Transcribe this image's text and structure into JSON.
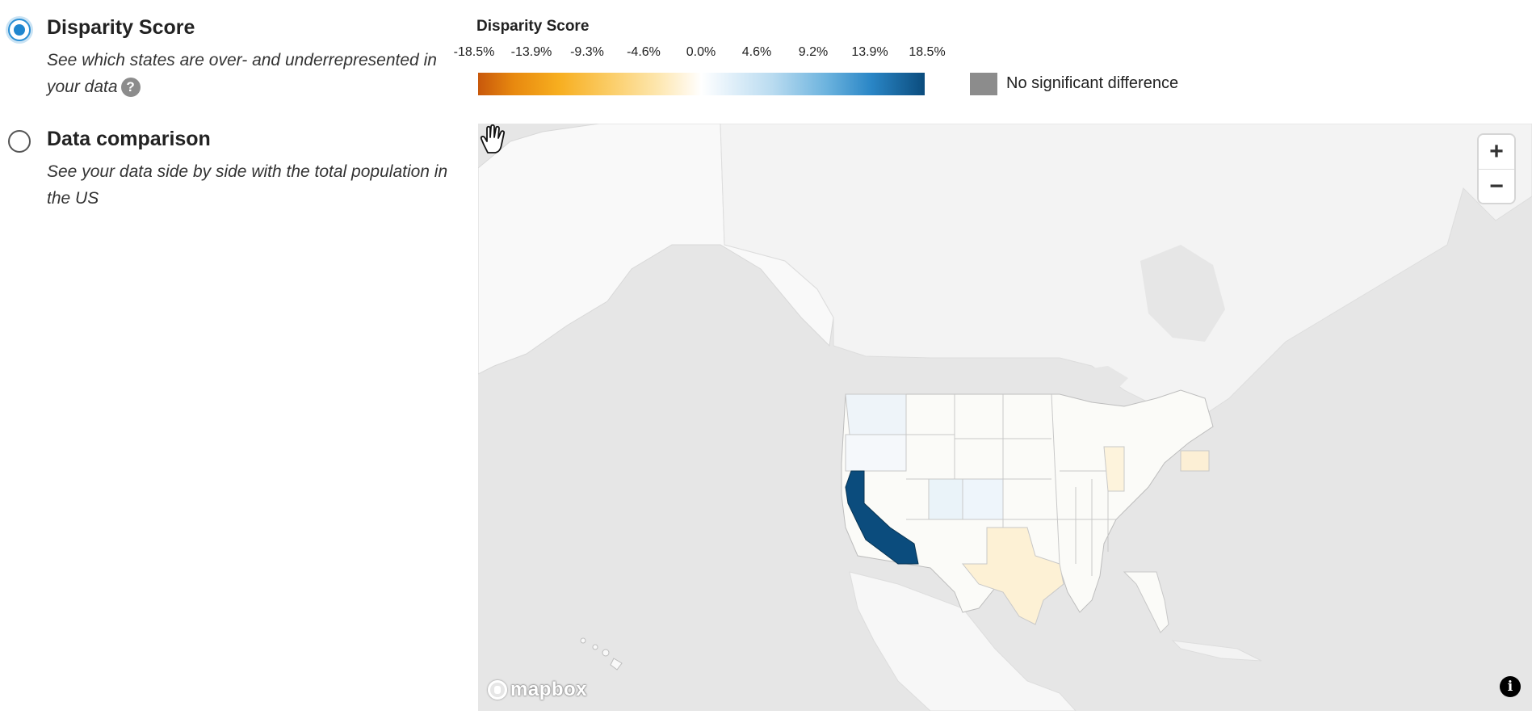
{
  "options": [
    {
      "id": "disparity",
      "title": "Disparity Score",
      "description": "See which states are over- and underrepresented in your data",
      "selected": true
    },
    {
      "id": "comparison",
      "title": "Data comparison",
      "description": "See your data side by side with the total population in the US",
      "selected": false
    }
  ],
  "help_icon": {
    "glyph": "?"
  },
  "legend": {
    "title": "Disparity Score",
    "ticks": [
      "-18.5%",
      "-13.9%",
      "-9.3%",
      "-4.6%",
      "0.0%",
      "4.6%",
      "9.2%",
      "13.9%",
      "18.5%"
    ],
    "no_sig_label": "No significant difference",
    "no_sig_color": "#8c8c8c",
    "scale_colors": {
      "min": "#c8580b",
      "mid": "#ffffff",
      "max": "#0b4c7d"
    }
  },
  "map": {
    "zoom_in": "+",
    "zoom_out": "−",
    "attribution": "i",
    "logo": "mapbox",
    "highlighted_state": "California",
    "highlight_color": "#0b4c7d"
  }
}
